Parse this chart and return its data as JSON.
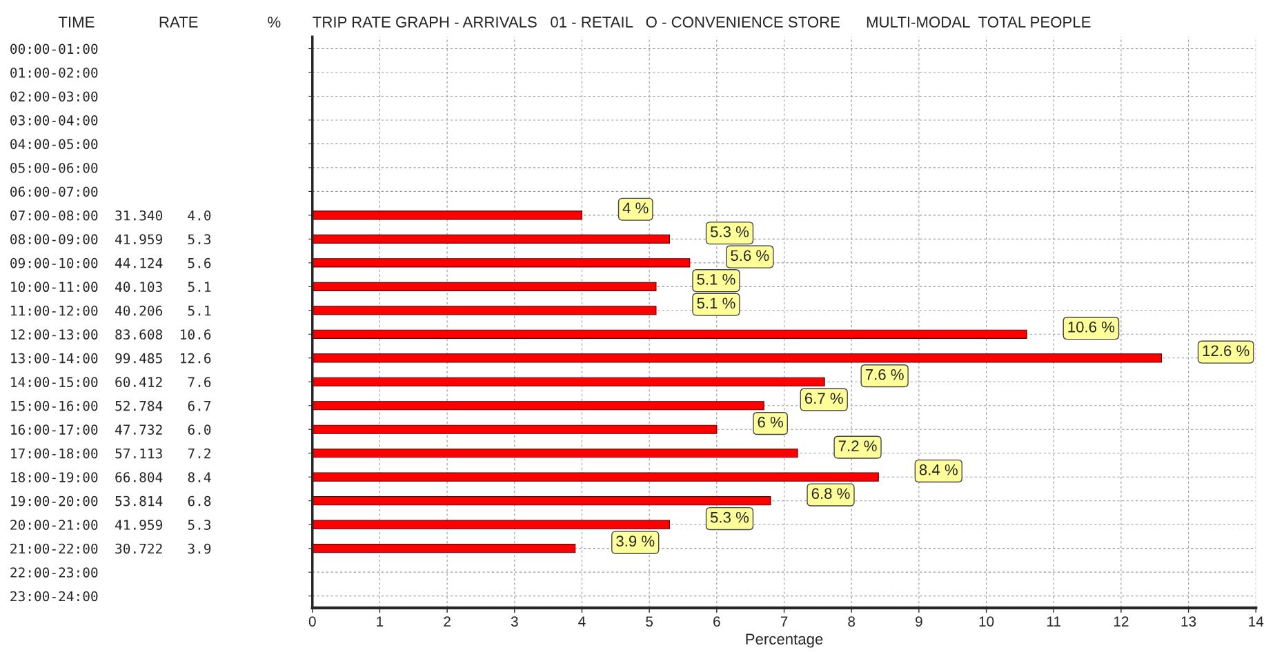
{
  "chart_data": {
    "type": "bar",
    "orientation": "horizontal",
    "title": "TRIP RATE GRAPH - ARRIVALS   01 - RETAIL   O - CONVENIENCE STORE      MULTI-MODAL  TOTAL PEOPLE",
    "xlabel": "Percentage",
    "categories": [
      "00:00-01:00",
      "01:00-02:00",
      "02:00-03:00",
      "03:00-04:00",
      "04:00-05:00",
      "05:00-06:00",
      "06:00-07:00",
      "07:00-08:00  31.340   4.0",
      "08:00-09:00  41.959   5.3",
      "09:00-10:00  44.124   5.6",
      "10:00-11:00  40.103   5.1",
      "11:00-12:00  40.206   5.1",
      "12:00-13:00  83.608  10.6",
      "13:00-14:00  99.485  12.6",
      "14:00-15:00  60.412   7.6",
      "15:00-16:00  52.784   6.7",
      "16:00-17:00  47.732   6.0",
      "17:00-18:00  57.113   7.2",
      "18:00-19:00  66.804   8.4",
      "19:00-20:00  53.814   6.8",
      "20:00-21:00  41.959   5.3",
      "21:00-22:00  30.722   3.9",
      "22:00-23:00",
      "23:00-24:00"
    ],
    "values": [
      null,
      null,
      null,
      null,
      null,
      null,
      null,
      4.0,
      5.3,
      5.6,
      5.1,
      5.1,
      10.6,
      12.6,
      7.6,
      6.7,
      6.0,
      7.2,
      8.4,
      6.8,
      5.3,
      3.9,
      null,
      null
    ],
    "value_labels": [
      null,
      null,
      null,
      null,
      null,
      null,
      null,
      "4 %",
      "5.3 %",
      "5.6 %",
      "5.1 %",
      "5.1 %",
      "10.6 %",
      "12.6 %",
      "7.6 %",
      "6.7 %",
      "6 %",
      "7.2 %",
      "8.4 %",
      "6.8 %",
      "5.3 %",
      "3.9 %",
      null,
      null
    ],
    "color": "#ff0000",
    "xlim": [
      0,
      14
    ],
    "xticks": [
      0,
      1,
      2,
      3,
      4,
      5,
      6,
      7,
      8,
      9,
      10,
      11,
      12,
      13,
      14
    ],
    "grid": true,
    "annotations": [
      "TIME",
      "RATE",
      "%"
    ]
  }
}
